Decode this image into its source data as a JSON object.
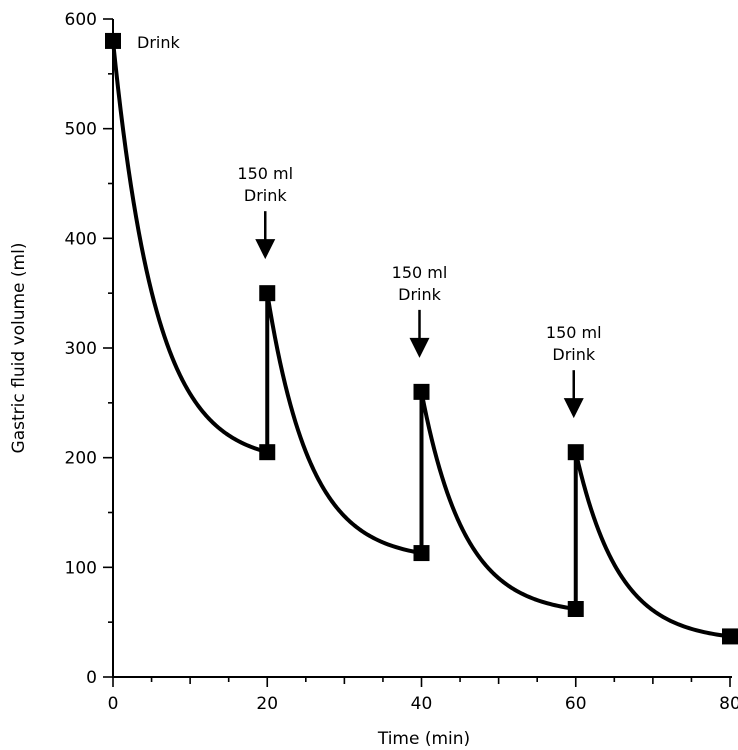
{
  "chart_data": {
    "type": "line",
    "xlabel": "Time (min)",
    "ylabel": "Gastric fluid volume (ml)",
    "xlim": [
      0,
      80
    ],
    "ylim": [
      0,
      600
    ],
    "x_ticks": [
      "0",
      "20",
      "40",
      "60",
      "80"
    ],
    "y_ticks": [
      "0",
      "100",
      "200",
      "300",
      "400",
      "500",
      "600"
    ],
    "grid": false,
    "series": [
      {
        "points": [
          {
            "x": 0,
            "y": 580
          },
          {
            "x": 20,
            "y": 205
          },
          {
            "x": 20,
            "y": 350
          },
          {
            "x": 40,
            "y": 113
          },
          {
            "x": 40,
            "y": 260
          },
          {
            "x": 60,
            "y": 62
          },
          {
            "x": 60,
            "y": 205
          },
          {
            "x": 80,
            "y": 37
          }
        ]
      }
    ],
    "annotations": [
      {
        "lines": [
          "Drink"
        ],
        "x": 0,
        "y": 580,
        "arrow": false
      },
      {
        "lines": [
          "150 ml",
          "Drink"
        ],
        "x": 20,
        "y": 350,
        "arrow": true
      },
      {
        "lines": [
          "150 ml",
          "Drink"
        ],
        "x": 40,
        "y": 260,
        "arrow": true
      },
      {
        "lines": [
          "150 ml",
          "Drink"
        ],
        "x": 60,
        "y": 205,
        "arrow": true
      }
    ]
  }
}
